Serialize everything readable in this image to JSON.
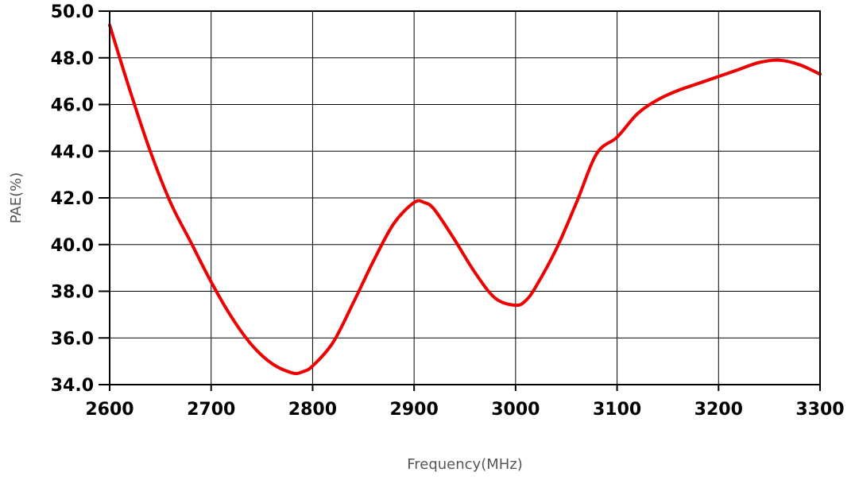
{
  "chart_data": {
    "type": "line",
    "title": "",
    "xlabel": "Frequency(MHz)",
    "ylabel": "PAE(%)",
    "xlim": [
      2600,
      3300
    ],
    "ylim": [
      34.0,
      50.0
    ],
    "grid": true,
    "x_ticks": [
      "2600",
      "2700",
      "2800",
      "2900",
      "3000",
      "3100",
      "3200",
      "3300"
    ],
    "y_ticks": [
      "34.0",
      "36.0",
      "38.0",
      "40.0",
      "42.0",
      "44.0",
      "46.0",
      "48.0",
      "50.0"
    ],
    "series": [
      {
        "color": "#ee0000",
        "x": [
          2600,
          2620,
          2640,
          2660,
          2680,
          2700,
          2720,
          2740,
          2760,
          2780,
          2790,
          2800,
          2820,
          2840,
          2860,
          2880,
          2900,
          2910,
          2920,
          2940,
          2960,
          2980,
          3000,
          3010,
          3020,
          3040,
          3060,
          3080,
          3100,
          3120,
          3140,
          3160,
          3180,
          3200,
          3220,
          3240,
          3260,
          3280,
          3300
        ],
        "y": [
          49.4,
          46.6,
          44.0,
          41.8,
          40.1,
          38.4,
          36.9,
          35.7,
          34.9,
          34.5,
          34.55,
          34.8,
          35.8,
          37.5,
          39.3,
          40.9,
          41.8,
          41.8,
          41.5,
          40.2,
          38.8,
          37.7,
          37.4,
          37.6,
          38.2,
          39.8,
          41.8,
          43.9,
          44.6,
          45.6,
          46.2,
          46.6,
          46.9,
          47.2,
          47.5,
          47.8,
          47.9,
          47.7,
          47.3
        ]
      }
    ]
  }
}
